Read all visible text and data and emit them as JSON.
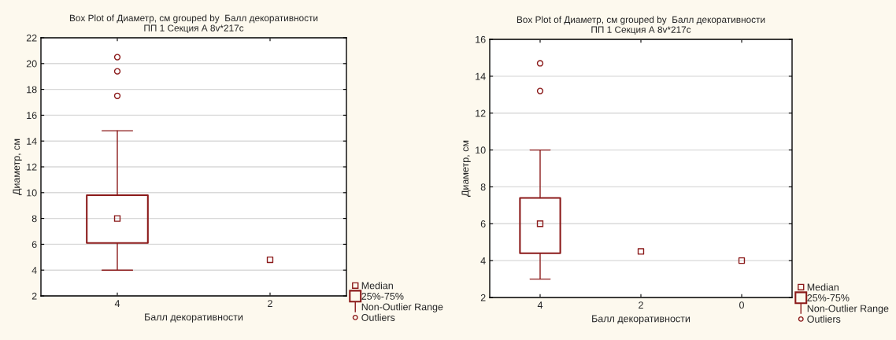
{
  "chart_data": [
    {
      "type": "box",
      "title": "Box Plot of Диаметр, см grouped by  Балл декоративности",
      "subtitle": "ПП 1 Секция А 8v*217c",
      "xlabel": "Балл декоративности",
      "ylabel": "Диаметр, см",
      "categories": [
        "4",
        "2"
      ],
      "color": "#8b1a1a",
      "boxes": [
        {
          "low": 4,
          "q1": 6.1,
          "median": 8,
          "q3": 9.8,
          "high": 14.8,
          "outliers": [
            17.5,
            19.4,
            20.5
          ]
        },
        null
      ],
      "series": [
        {
          "type": "scatter",
          "x": [
            "2"
          ],
          "values": [
            4.8
          ],
          "color": "#8b1a1a",
          "marker": "square"
        }
      ],
      "ylim": [
        2,
        22
      ],
      "yticks": [
        2,
        4,
        6,
        8,
        10,
        12,
        14,
        16,
        18,
        20,
        22
      ],
      "grid": "y",
      "annotations": [
        "Median",
        "25%-75%",
        "Non-Outlier Range",
        "Outliers"
      ]
    },
    {
      "type": "box",
      "title": "Box Plot of Диаметр, см grouped by  Балл декоративности",
      "subtitle": "ПП 1 Секция А 8v*217c",
      "xlabel": "Балл декоративности",
      "ylabel": "Диаметр, см",
      "categories": [
        "4",
        "2",
        "0"
      ],
      "color": "#8b1a1a",
      "boxes": [
        {
          "low": 3,
          "q1": 4.4,
          "median": 6,
          "q3": 7.4,
          "high": 10,
          "outliers": [
            13.2,
            14.7
          ]
        },
        null,
        null
      ],
      "series": [
        {
          "type": "scatter",
          "x": [
            "2",
            "0"
          ],
          "values": [
            4.5,
            4
          ],
          "color": "#8b1a1a",
          "marker": "square"
        }
      ],
      "ylim": [
        2,
        16
      ],
      "yticks": [
        2,
        4,
        6,
        8,
        10,
        12,
        14,
        16
      ],
      "grid": "y",
      "annotations": [
        "Median",
        "25%-75%",
        "Non-Outlier Range",
        "Outliers"
      ]
    }
  ]
}
